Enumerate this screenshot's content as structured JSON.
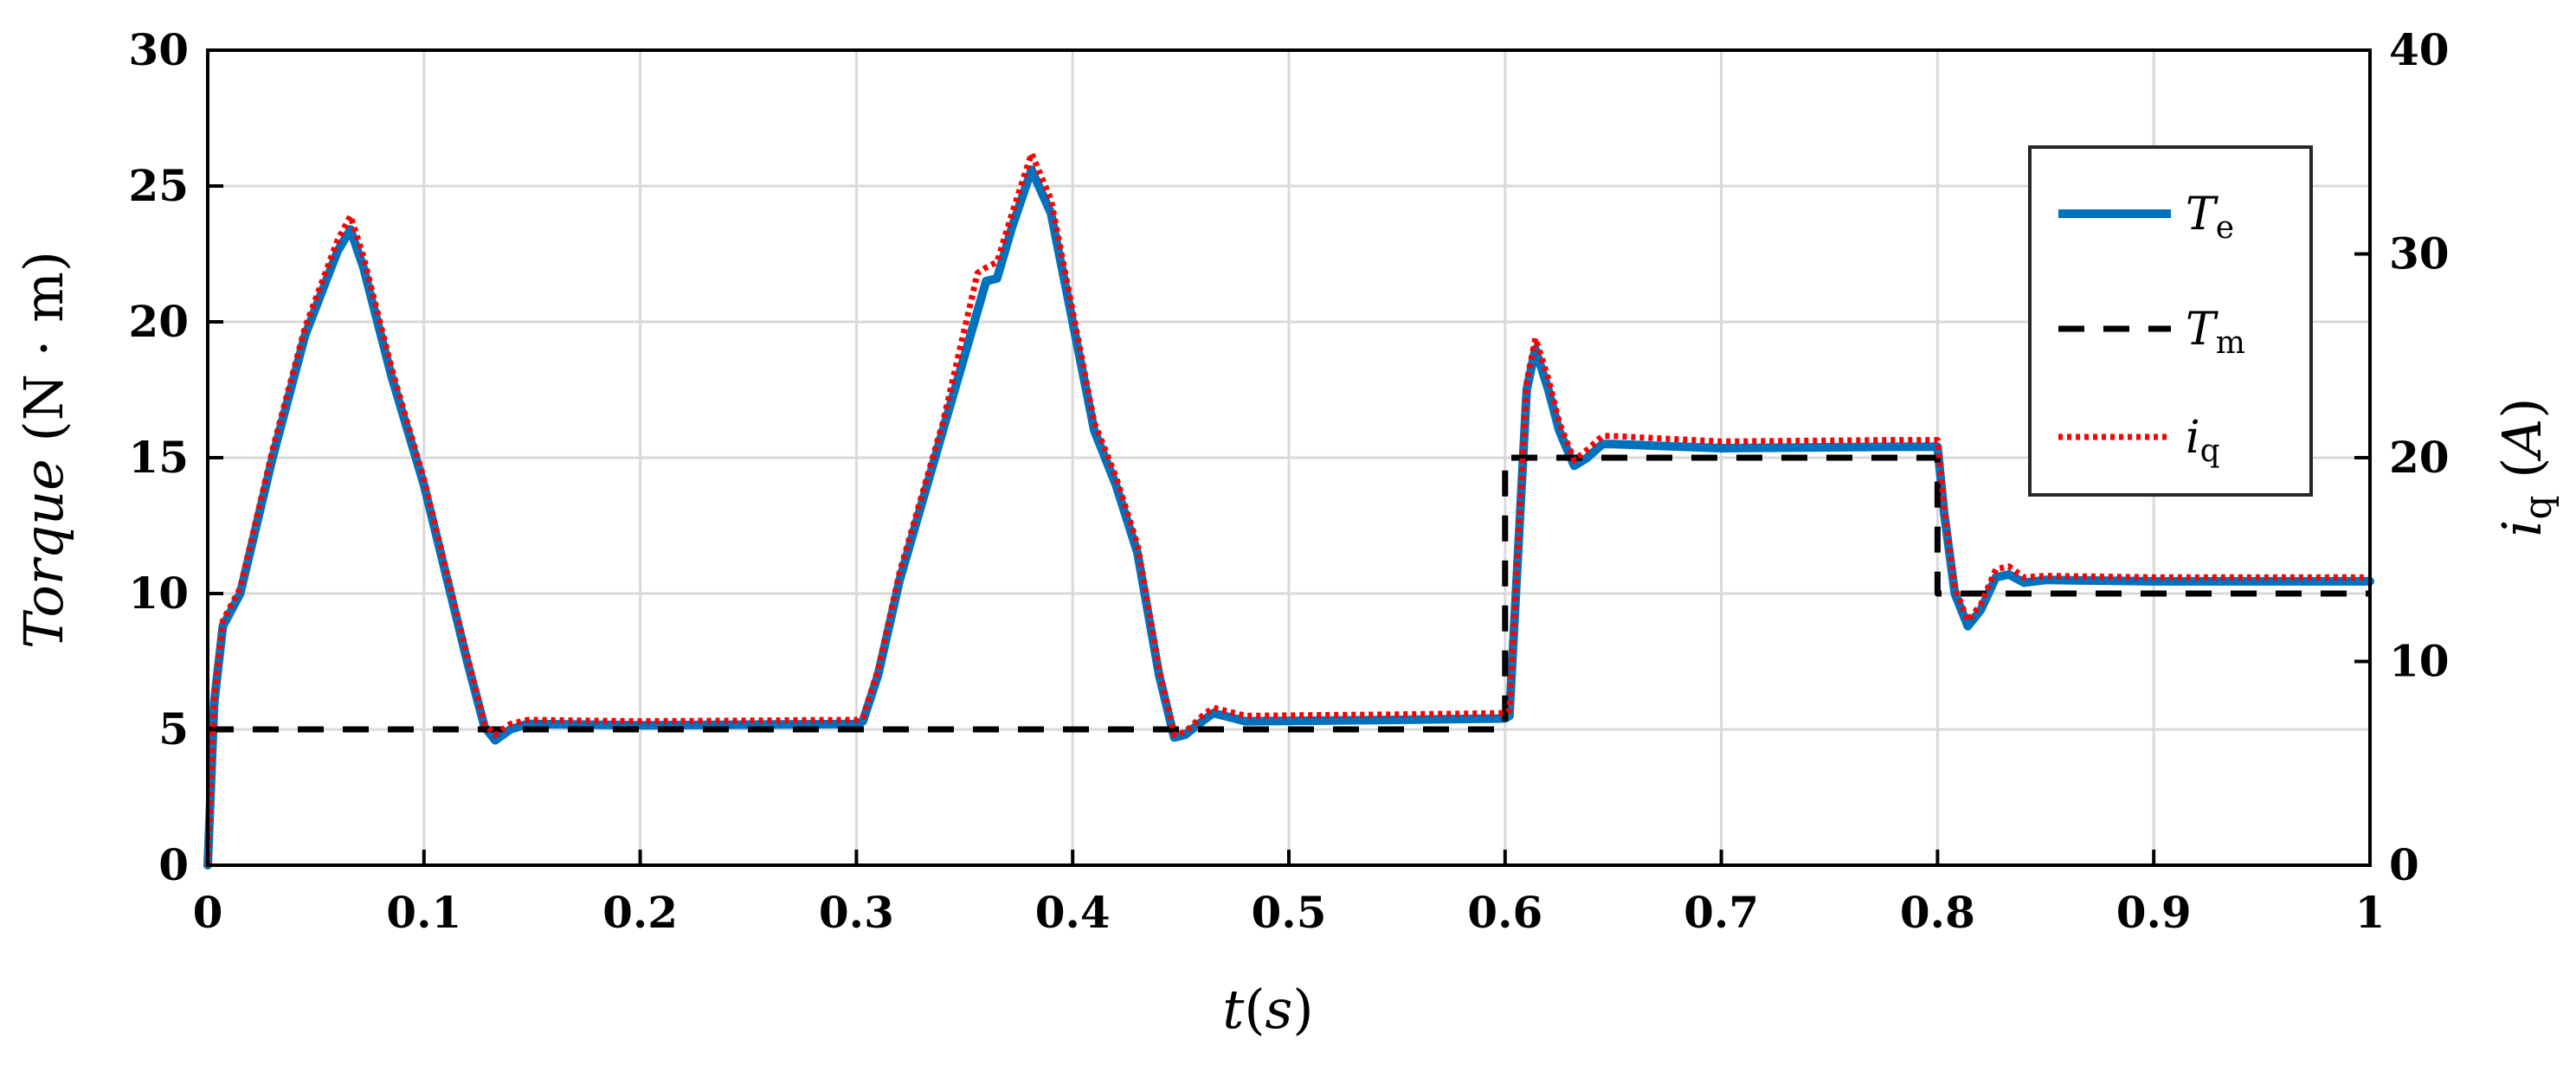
{
  "chart_data": {
    "type": "line",
    "xlabel": "t(s)",
    "ylabel": "Torque (N · m)",
    "y2label": "i_q (A)",
    "xlim": [
      0,
      1
    ],
    "ylim": [
      0,
      30
    ],
    "y2lim": [
      0,
      40
    ],
    "x_ticks": [
      "0",
      "0.1",
      "0.2",
      "0.3",
      "0.4",
      "0.5",
      "0.6",
      "0.7",
      "0.8",
      "0.9",
      "1"
    ],
    "y_ticks": [
      "0",
      "5",
      "10",
      "15",
      "20",
      "25",
      "30"
    ],
    "y2_ticks": [
      "0",
      "10",
      "20",
      "30",
      "40"
    ],
    "grid": true,
    "legend_position": "top-right",
    "series": [
      {
        "name": "T_e",
        "legend_main": "T",
        "legend_sub": "e",
        "color": "#0072BD",
        "style": "solid",
        "axis": "left",
        "points": [
          [
            0,
            0
          ],
          [
            0.003,
            6
          ],
          [
            0.007,
            8.8
          ],
          [
            0.015,
            10
          ],
          [
            0.03,
            15
          ],
          [
            0.045,
            19.5
          ],
          [
            0.06,
            22.6
          ],
          [
            0.066,
            23.4
          ],
          [
            0.072,
            22
          ],
          [
            0.085,
            18
          ],
          [
            0.1,
            14
          ],
          [
            0.12,
            7.5
          ],
          [
            0.128,
            5.1
          ],
          [
            0.133,
            4.6
          ],
          [
            0.14,
            5
          ],
          [
            0.148,
            5.2
          ],
          [
            0.2,
            5.15
          ],
          [
            0.3,
            5.2
          ],
          [
            0.303,
            5.3
          ],
          [
            0.31,
            7
          ],
          [
            0.32,
            10.5
          ],
          [
            0.34,
            16
          ],
          [
            0.36,
            21.5
          ],
          [
            0.365,
            21.6
          ],
          [
            0.372,
            23.5
          ],
          [
            0.381,
            25.6
          ],
          [
            0.39,
            24
          ],
          [
            0.4,
            20
          ],
          [
            0.41,
            16
          ],
          [
            0.42,
            14
          ],
          [
            0.43,
            11.5
          ],
          [
            0.44,
            7
          ],
          [
            0.447,
            4.7
          ],
          [
            0.452,
            4.8
          ],
          [
            0.46,
            5.3
          ],
          [
            0.465,
            5.6
          ],
          [
            0.48,
            5.3
          ],
          [
            0.55,
            5.35
          ],
          [
            0.6,
            5.4
          ],
          [
            0.602,
            5.5
          ],
          [
            0.605,
            10
          ],
          [
            0.61,
            17.5
          ],
          [
            0.614,
            19
          ],
          [
            0.62,
            17.5
          ],
          [
            0.625,
            16
          ],
          [
            0.632,
            14.7
          ],
          [
            0.638,
            15
          ],
          [
            0.645,
            15.5
          ],
          [
            0.65,
            15.5
          ],
          [
            0.7,
            15.35
          ],
          [
            0.78,
            15.4
          ],
          [
            0.8,
            15.4
          ],
          [
            0.803,
            13
          ],
          [
            0.808,
            10
          ],
          [
            0.814,
            8.8
          ],
          [
            0.82,
            9.4
          ],
          [
            0.827,
            10.6
          ],
          [
            0.833,
            10.7
          ],
          [
            0.84,
            10.4
          ],
          [
            0.85,
            10.5
          ],
          [
            0.9,
            10.45
          ],
          [
            1.0,
            10.45
          ]
        ]
      },
      {
        "name": "T_m",
        "legend_main": "T",
        "legend_sub": "m",
        "color": "#000000",
        "style": "dashed",
        "axis": "left",
        "points": [
          [
            0,
            5
          ],
          [
            0.6,
            5
          ],
          [
            0.6,
            15
          ],
          [
            0.8,
            15
          ],
          [
            0.8,
            10
          ],
          [
            1.0,
            10
          ]
        ]
      },
      {
        "name": "i_q",
        "legend_main": "i",
        "legend_sub": "q",
        "color": "#FF0000",
        "style": "dotted",
        "axis": "left",
        "points": [
          [
            0,
            0
          ],
          [
            0.003,
            6.2
          ],
          [
            0.007,
            9
          ],
          [
            0.015,
            10.2
          ],
          [
            0.03,
            15.3
          ],
          [
            0.045,
            19.8
          ],
          [
            0.06,
            23
          ],
          [
            0.066,
            23.9
          ],
          [
            0.072,
            22.4
          ],
          [
            0.085,
            18.3
          ],
          [
            0.1,
            14.2
          ],
          [
            0.12,
            7.7
          ],
          [
            0.128,
            5.2
          ],
          [
            0.133,
            4.8
          ],
          [
            0.14,
            5.2
          ],
          [
            0.148,
            5.35
          ],
          [
            0.2,
            5.3
          ],
          [
            0.3,
            5.35
          ],
          [
            0.303,
            5.45
          ],
          [
            0.31,
            7.2
          ],
          [
            0.32,
            10.8
          ],
          [
            0.34,
            16.3
          ],
          [
            0.356,
            21.8
          ],
          [
            0.36,
            22
          ],
          [
            0.365,
            22.2
          ],
          [
            0.372,
            24
          ],
          [
            0.381,
            26.2
          ],
          [
            0.39,
            24.5
          ],
          [
            0.4,
            20.4
          ],
          [
            0.41,
            16.3
          ],
          [
            0.42,
            14.3
          ],
          [
            0.43,
            11.8
          ],
          [
            0.44,
            7.2
          ],
          [
            0.447,
            4.8
          ],
          [
            0.452,
            4.9
          ],
          [
            0.46,
            5.5
          ],
          [
            0.465,
            5.8
          ],
          [
            0.48,
            5.5
          ],
          [
            0.55,
            5.55
          ],
          [
            0.6,
            5.6
          ],
          [
            0.602,
            5.7
          ],
          [
            0.605,
            10.3
          ],
          [
            0.61,
            17.8
          ],
          [
            0.614,
            19.4
          ],
          [
            0.62,
            17.9
          ],
          [
            0.625,
            16.3
          ],
          [
            0.632,
            14.9
          ],
          [
            0.638,
            15.3
          ],
          [
            0.645,
            15.8
          ],
          [
            0.65,
            15.8
          ],
          [
            0.7,
            15.6
          ],
          [
            0.78,
            15.65
          ],
          [
            0.8,
            15.65
          ],
          [
            0.803,
            13.2
          ],
          [
            0.808,
            10.2
          ],
          [
            0.814,
            9
          ],
          [
            0.82,
            9.6
          ],
          [
            0.827,
            10.9
          ],
          [
            0.833,
            11
          ],
          [
            0.84,
            10.6
          ],
          [
            0.85,
            10.65
          ],
          [
            0.9,
            10.6
          ],
          [
            1.0,
            10.6
          ]
        ]
      }
    ]
  }
}
